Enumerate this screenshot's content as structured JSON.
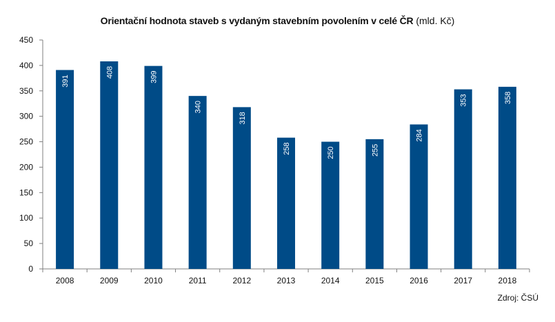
{
  "chart_data": {
    "type": "bar",
    "title": "Orientační hodnota staveb s vydaným stavebním povolením v celé ČR",
    "unit": "(mld. Kč)",
    "categories": [
      "2008",
      "2009",
      "2010",
      "2011",
      "2012",
      "2013",
      "2014",
      "2015",
      "2016",
      "2017",
      "2018"
    ],
    "values": [
      391,
      408,
      399,
      340,
      318,
      258,
      250,
      255,
      284,
      353,
      358
    ],
    "data_labels": [
      "391",
      "408",
      "399",
      "340",
      "318",
      "258",
      "250",
      "255",
      "284",
      "353",
      "358"
    ],
    "ylim": [
      0,
      450
    ],
    "yticks": [
      0,
      50,
      100,
      150,
      200,
      250,
      300,
      350,
      400,
      450
    ],
    "ytick_labels": [
      "0",
      "50",
      "100",
      "150",
      "200",
      "250",
      "300",
      "350",
      "400",
      "450"
    ],
    "grid": false,
    "legend": "none",
    "bar_color": "#004b87",
    "label_color": "#ffffff",
    "source": "Zdroj: ČSÚ"
  }
}
